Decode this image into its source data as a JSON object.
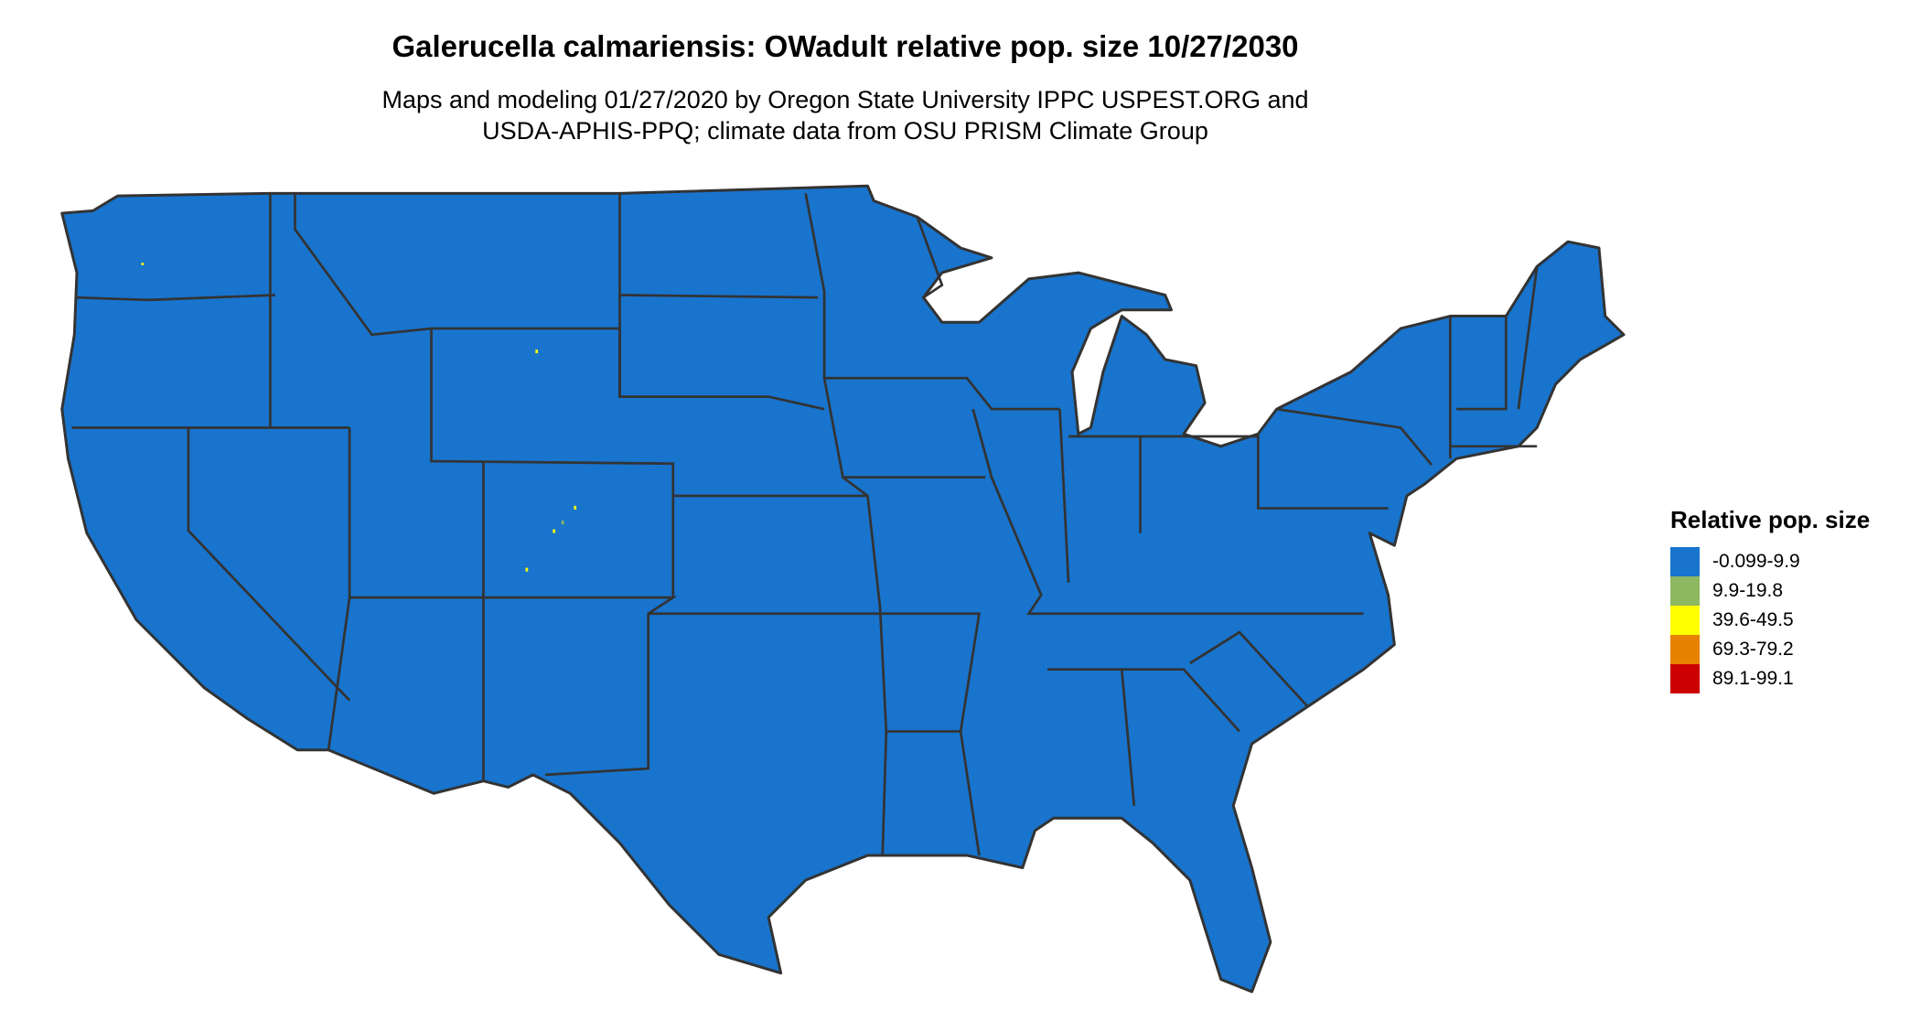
{
  "title": "Galerucella calmariensis: OWadult relative pop. size 10/27/2030",
  "subtitle_line1": "Maps and modeling 01/27/2020 by Oregon State University IPPC USPEST.ORG and",
  "subtitle_line2": "USDA-APHIS-PPQ; climate data from OSU PRISM Climate Group",
  "map": {
    "region": "Contiguous United States",
    "fill_color": "#1874CD",
    "border_color": "#333333",
    "dominant_class": "-0.099-9.9"
  },
  "legend": {
    "title": "Relative pop. size",
    "items": [
      {
        "label": "-0.099-9.9",
        "color": "#1874CD"
      },
      {
        "label": "9.9-19.8",
        "color": "#8DB761"
      },
      {
        "label": "39.6-49.5",
        "color": "#FFFF00"
      },
      {
        "label": "69.3-79.2",
        "color": "#E88000"
      },
      {
        "label": "89.1-99.1",
        "color": "#CC0000"
      }
    ]
  }
}
